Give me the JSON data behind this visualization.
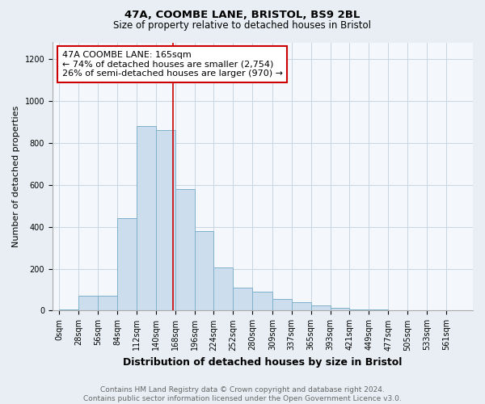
{
  "title1": "47A, COOMBE LANE, BRISTOL, BS9 2BL",
  "title2": "Size of property relative to detached houses in Bristol",
  "xlabel": "Distribution of detached houses by size in Bristol",
  "ylabel": "Number of detached properties",
  "bar_left_edges": [
    0,
    28,
    56,
    84,
    112,
    140,
    168,
    196,
    224,
    252,
    280,
    309,
    337,
    365,
    393,
    421,
    449,
    477,
    505,
    533,
    561
  ],
  "bar_heights": [
    5,
    70,
    70,
    440,
    880,
    860,
    580,
    380,
    205,
    110,
    90,
    55,
    40,
    25,
    15,
    5,
    5,
    2,
    2,
    1,
    1
  ],
  "bar_widths": [
    28,
    28,
    28,
    28,
    28,
    28,
    28,
    28,
    28,
    28,
    29,
    28,
    28,
    28,
    28,
    28,
    28,
    28,
    28,
    28,
    28
  ],
  "bar_color": "#ccdded",
  "bar_edge_color": "#7fb0cc",
  "property_line_x": 165,
  "property_line_color": "#cc0000",
  "annotation_text": "47A COOMBE LANE: 165sqm\n← 74% of detached houses are smaller (2,754)\n26% of semi-detached houses are larger (970) →",
  "annotation_box_color": "#ffffff",
  "annotation_box_edge_color": "#cc0000",
  "ylim": [
    0,
    1280
  ],
  "yticks": [
    0,
    200,
    400,
    600,
    800,
    1000,
    1200
  ],
  "xtick_labels": [
    "0sqm",
    "28sqm",
    "56sqm",
    "84sqm",
    "112sqm",
    "140sqm",
    "168sqm",
    "196sqm",
    "224sqm",
    "252sqm",
    "280sqm",
    "309sqm",
    "337sqm",
    "365sqm",
    "393sqm",
    "421sqm",
    "449sqm",
    "477sqm",
    "505sqm",
    "533sqm",
    "561sqm"
  ],
  "xtick_positions": [
    0,
    28,
    56,
    84,
    112,
    140,
    168,
    196,
    224,
    252,
    280,
    309,
    337,
    365,
    393,
    421,
    449,
    477,
    505,
    533,
    561
  ],
  "footer_text": "Contains HM Land Registry data © Crown copyright and database right 2024.\nContains public sector information licensed under the Open Government Licence v3.0.",
  "bg_color": "#e8eef4",
  "plot_bg_color": "#f4f8fc",
  "grid_color": "#c8d4e0",
  "title1_fontsize": 9.5,
  "title2_fontsize": 8.5,
  "xlabel_fontsize": 9,
  "ylabel_fontsize": 8,
  "tick_fontsize": 7,
  "footer_fontsize": 6.5,
  "annotation_fontsize": 8
}
